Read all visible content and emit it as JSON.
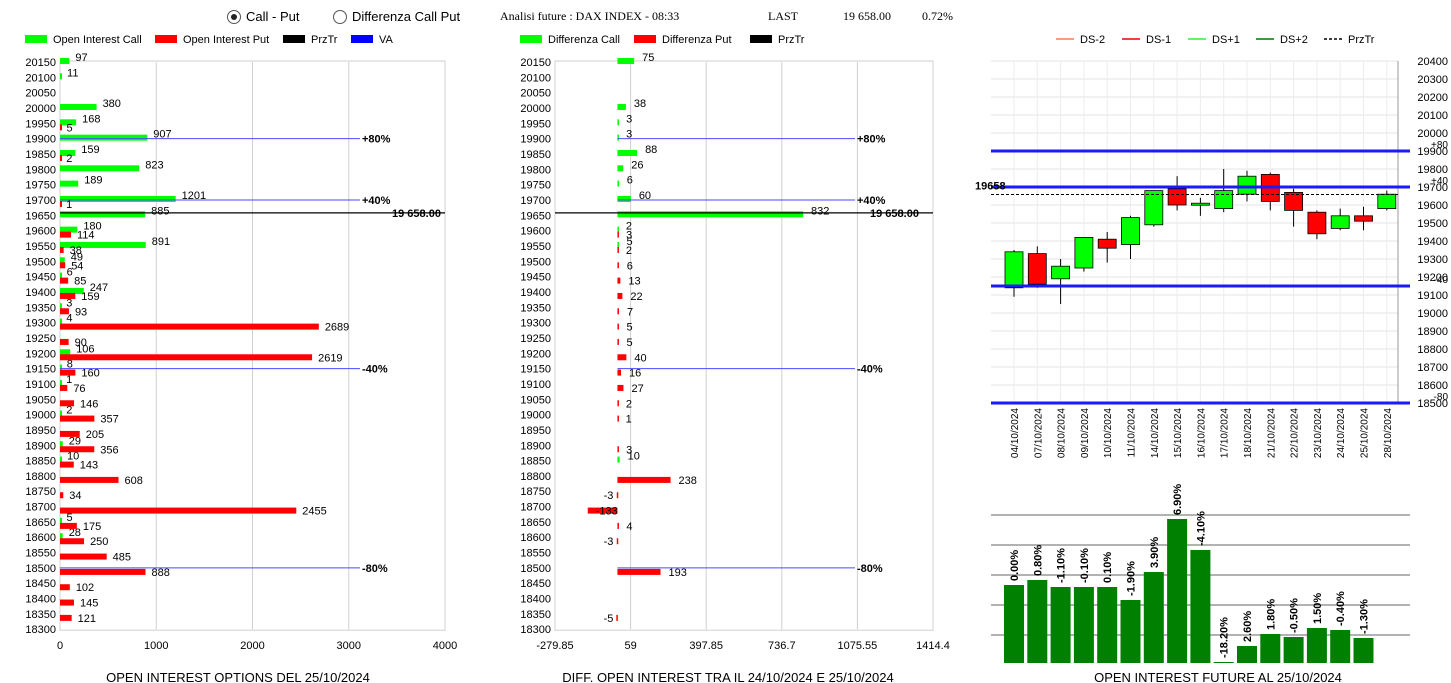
{
  "header": {
    "radio_call_put": "Call - Put",
    "radio_diff": "Differenza Call Put",
    "title": "Analisi future : DAX INDEX - 08:33",
    "last_label": "LAST",
    "last_value": "19 658.00",
    "change": "0.72%"
  },
  "chart_data": [
    {
      "type": "bar",
      "orientation": "horizontal",
      "title": "OPEN INTEREST OPTIONS DEL 25/10/2024",
      "legend": [
        "Open Interest Call",
        "Open Interest Put",
        "PrzTr",
        "VA"
      ],
      "colors": {
        "call": "#00ff00",
        "put": "#ff0000",
        "prztr": "#000000",
        "va": "#0000ff"
      },
      "strikes": [
        20150,
        20100,
        20050,
        20000,
        19950,
        19900,
        19850,
        19800,
        19750,
        19700,
        19650,
        19600,
        19550,
        19500,
        19450,
        19400,
        19350,
        19300,
        19250,
        19200,
        19150,
        19100,
        19050,
        19000,
        18950,
        18900,
        18850,
        18800,
        18750,
        18700,
        18650,
        18600,
        18550,
        18500,
        18450,
        18400,
        18350,
        18300
      ],
      "series": [
        {
          "name": "Open Interest Call",
          "values": [
            97,
            11,
            null,
            380,
            168,
            907,
            159,
            823,
            189,
            1201,
            885,
            180,
            891,
            49,
            6,
            247,
            3,
            4,
            null,
            106,
            8,
            1,
            null,
            2,
            null,
            29,
            10,
            null,
            null,
            null,
            5,
            28,
            null,
            null,
            null,
            null,
            null,
            null
          ]
        },
        {
          "name": "Open Interest Put",
          "values": [
            null,
            null,
            null,
            null,
            5,
            null,
            2,
            null,
            null,
            1,
            null,
            114,
            38,
            54,
            85,
            159,
            93,
            2689,
            90,
            2619,
            160,
            76,
            146,
            357,
            205,
            356,
            143,
            608,
            34,
            2455,
            175,
            250,
            485,
            888,
            102,
            145,
            121,
            null
          ]
        }
      ],
      "xlim": [
        0,
        4000
      ],
      "xticks": [
        "0",
        "1000",
        "2000",
        "3000",
        "4000"
      ],
      "lines": [
        {
          "strike": 19900,
          "label": "+80%"
        },
        {
          "strike": 19700,
          "label": "+40%"
        },
        {
          "strike": 19150,
          "label": "-40%"
        },
        {
          "strike": 18500,
          "label": "-80%"
        }
      ],
      "przt_line": {
        "strike": 19658,
        "label": "19 658.00"
      }
    },
    {
      "type": "bar",
      "orientation": "horizontal",
      "title": "DIFF. OPEN INTEREST TRA IL 24/10/2024 E 25/10/2024",
      "legend": [
        "Differenza Call",
        "Differenza Put",
        "PrzTr"
      ],
      "strikes": [
        20150,
        20100,
        20050,
        20000,
        19950,
        19900,
        19850,
        19800,
        19750,
        19700,
        19650,
        19600,
        19550,
        19500,
        19450,
        19400,
        19350,
        19300,
        19250,
        19200,
        19150,
        19100,
        19050,
        19000,
        18950,
        18900,
        18850,
        18800,
        18750,
        18700,
        18650,
        18600,
        18550,
        18500,
        18450,
        18400,
        18350,
        18300
      ],
      "series": [
        {
          "name": "Differenza Call",
          "values": [
            75,
            null,
            null,
            38,
            3,
            3,
            88,
            26,
            6,
            60,
            832,
            2,
            5,
            null,
            null,
            null,
            null,
            null,
            null,
            null,
            null,
            null,
            null,
            null,
            null,
            null,
            10,
            null,
            null,
            null,
            null,
            null,
            null,
            null,
            null,
            null,
            null,
            null
          ]
        },
        {
          "name": "Differenza Put",
          "values": [
            null,
            null,
            null,
            null,
            null,
            null,
            null,
            null,
            null,
            null,
            null,
            3,
            2,
            6,
            13,
            22,
            7,
            5,
            5,
            40,
            16,
            27,
            2,
            1,
            null,
            3,
            null,
            238,
            -3,
            -133,
            4,
            -3,
            null,
            193,
            null,
            null,
            -5,
            null
          ]
        }
      ],
      "xlim": [
        -279.85,
        1414.4
      ],
      "xticks": [
        "-279.85",
        "59",
        "397.85",
        "736.7",
        "1075.55",
        "1414.4"
      ],
      "lines": [
        {
          "strike": 19900,
          "label": "+80%"
        },
        {
          "strike": 19700,
          "label": "+40%"
        },
        {
          "strike": 19150,
          "label": "-40%"
        },
        {
          "strike": 18500,
          "label": "-80%"
        }
      ],
      "przt_line": {
        "strike": 19658,
        "label": "19 658.00"
      }
    },
    {
      "type": "candlestick",
      "legend": [
        "DS-2",
        "DS-1",
        "DS+1",
        "DS+2",
        "PrzTr"
      ],
      "categories": [
        "04/10/2024",
        "07/10/2024",
        "08/10/2024",
        "09/10/2024",
        "10/10/2024",
        "11/10/2024",
        "14/10/2024",
        "15/10/2024",
        "16/10/2024",
        "17/10/2024",
        "18/10/2024",
        "21/10/2024",
        "22/10/2024",
        "23/10/2024",
        "24/10/2024",
        "25/10/2024",
        "28/10/2024"
      ],
      "ohlc": [
        {
          "o": 19140,
          "h": 19350,
          "l": 19090,
          "c": 19340
        },
        {
          "o": 19330,
          "h": 19370,
          "l": 19140,
          "c": 19160
        },
        {
          "o": 19190,
          "h": 19300,
          "l": 19050,
          "c": 19260
        },
        {
          "o": 19250,
          "h": 19420,
          "l": 19230,
          "c": 19420
        },
        {
          "o": 19410,
          "h": 19450,
          "l": 19280,
          "c": 19360
        },
        {
          "o": 19380,
          "h": 19540,
          "l": 19300,
          "c": 19530
        },
        {
          "o": 19490,
          "h": 19680,
          "l": 19480,
          "c": 19680
        },
        {
          "o": 19690,
          "h": 19760,
          "l": 19570,
          "c": 19600
        },
        {
          "o": 19600,
          "h": 19640,
          "l": 19540,
          "c": 19610
        },
        {
          "o": 19580,
          "h": 19800,
          "l": 19560,
          "c": 19680
        },
        {
          "o": 19660,
          "h": 19790,
          "l": 19620,
          "c": 19760
        },
        {
          "o": 19770,
          "h": 19780,
          "l": 19570,
          "c": 19620
        },
        {
          "o": 19670,
          "h": 19690,
          "l": 19480,
          "c": 19570
        },
        {
          "o": 19560,
          "h": 19570,
          "l": 19410,
          "c": 19440
        },
        {
          "o": 19470,
          "h": 19580,
          "l": 19460,
          "c": 19540
        },
        {
          "o": 19540,
          "h": 19590,
          "l": 19460,
          "c": 19510
        },
        {
          "o": 19580,
          "h": 19680,
          "l": 19570,
          "c": 19660
        }
      ],
      "ylim": [
        18500,
        20400
      ],
      "yticks": [
        18500,
        18600,
        18700,
        18800,
        18900,
        19000,
        19100,
        19200,
        19300,
        19400,
        19500,
        19600,
        19700,
        19800,
        19900,
        20000,
        20100,
        20200,
        20300,
        20400
      ],
      "levels": [
        {
          "value": 19900,
          "label": "+80"
        },
        {
          "value": 19700,
          "label": "+40"
        },
        {
          "value": 19150,
          "label": "-40"
        },
        {
          "value": 18500,
          "label": "-80"
        }
      ],
      "przt": {
        "value": 19658,
        "label": "19658"
      }
    },
    {
      "type": "bar",
      "title": "OPEN INTEREST FUTURE AL 25/10/2024",
      "categories": [
        "04/10/2024",
        "07/10/2024",
        "08/10/2024",
        "09/10/2024",
        "10/10/2024",
        "11/10/2024",
        "14/10/2024",
        "15/10/2024",
        "16/10/2024",
        "17/10/2024",
        "18/10/2024",
        "21/10/2024",
        "22/10/2024",
        "23/10/2024",
        "24/10/2024",
        "25/10/2024"
      ],
      "values": [
        0.0,
        0.8,
        -1.1,
        -0.1,
        0.1,
        -1.9,
        3.9,
        6.9,
        -4.1,
        -18.2,
        2.6,
        1.8,
        -0.5,
        1.5,
        -0.4,
        -1.3
      ],
      "labels": [
        "0.00%",
        "0.80%",
        "-1.10%",
        "-0.10%",
        "0.10%",
        "-1.90%",
        "3.90%",
        "6.90%",
        "-4.10%",
        "-18.20%",
        "2.60%",
        "1.80%",
        "-0.50%",
        "1.50%",
        "-0.40%",
        "-1.30%"
      ],
      "heights": [
        78,
        83,
        76,
        76,
        76,
        63,
        91,
        144,
        113,
        1,
        17,
        29,
        26,
        35,
        33,
        25
      ]
    }
  ]
}
